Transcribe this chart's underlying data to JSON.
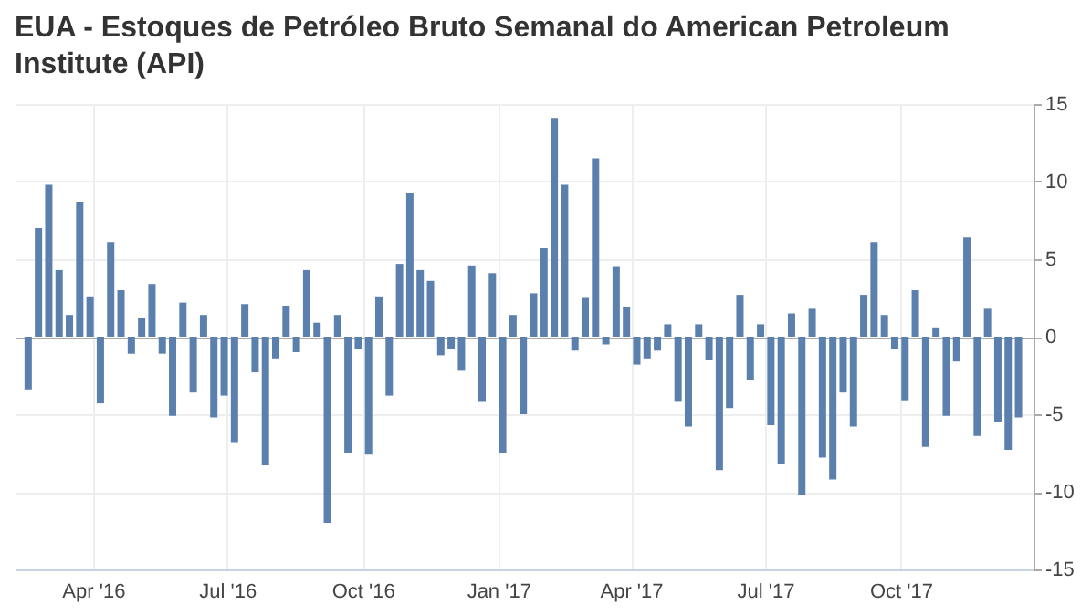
{
  "chart_data": {
    "type": "bar",
    "title": "EUA - Estoques de Petróleo Bruto Semanal do American Petroleum Institute (API)",
    "x": [
      "2016-02-17",
      "2016-02-24",
      "2016-03-02",
      "2016-03-09",
      "2016-03-16",
      "2016-03-23",
      "2016-03-30",
      "2016-04-06",
      "2016-04-13",
      "2016-04-20",
      "2016-04-27",
      "2016-05-04",
      "2016-05-11",
      "2016-05-18",
      "2016-05-25",
      "2016-06-01",
      "2016-06-08",
      "2016-06-15",
      "2016-06-22",
      "2016-06-29",
      "2016-07-06",
      "2016-07-13",
      "2016-07-20",
      "2016-07-27",
      "2016-08-03",
      "2016-08-10",
      "2016-08-17",
      "2016-08-24",
      "2016-08-31",
      "2016-09-07",
      "2016-09-14",
      "2016-09-21",
      "2016-09-28",
      "2016-10-05",
      "2016-10-12",
      "2016-10-19",
      "2016-10-26",
      "2016-11-02",
      "2016-11-09",
      "2016-11-16",
      "2016-11-23",
      "2016-11-30",
      "2016-12-07",
      "2016-12-14",
      "2016-12-21",
      "2016-12-28",
      "2017-01-04",
      "2017-01-11",
      "2017-01-18",
      "2017-01-25",
      "2017-02-01",
      "2017-02-08",
      "2017-02-15",
      "2017-02-22",
      "2017-03-01",
      "2017-03-08",
      "2017-03-15",
      "2017-03-22",
      "2017-03-29",
      "2017-04-05",
      "2017-04-12",
      "2017-04-19",
      "2017-04-26",
      "2017-05-03",
      "2017-05-10",
      "2017-05-17",
      "2017-05-24",
      "2017-05-31",
      "2017-06-07",
      "2017-06-14",
      "2017-06-21",
      "2017-06-28",
      "2017-07-05",
      "2017-07-12",
      "2017-07-19",
      "2017-07-26",
      "2017-08-02",
      "2017-08-09",
      "2017-08-16",
      "2017-08-23",
      "2017-08-30",
      "2017-09-06",
      "2017-09-13",
      "2017-09-20",
      "2017-09-27",
      "2017-10-04",
      "2017-10-11",
      "2017-10-18",
      "2017-10-25",
      "2017-11-01",
      "2017-11-08",
      "2017-11-15",
      "2017-11-22",
      "2017-11-29",
      "2017-12-06",
      "2017-12-13",
      "2017-12-20"
    ],
    "values": [
      -3.4,
      7.0,
      9.8,
      4.3,
      1.4,
      8.7,
      2.6,
      -4.3,
      6.1,
      3.0,
      -1.1,
      1.2,
      3.4,
      -1.1,
      -5.1,
      2.2,
      -3.6,
      1.4,
      -5.2,
      -3.8,
      -6.8,
      2.1,
      -2.3,
      -8.3,
      -1.4,
      2.0,
      -1.0,
      4.3,
      0.9,
      -12.0,
      1.4,
      -7.5,
      -0.8,
      -7.6,
      2.6,
      -3.8,
      4.7,
      9.3,
      4.3,
      3.6,
      -1.2,
      -0.8,
      -2.2,
      4.6,
      -4.2,
      4.1,
      -7.5,
      1.4,
      -5.0,
      2.8,
      5.7,
      14.1,
      9.8,
      -0.9,
      2.5,
      11.5,
      -0.5,
      4.5,
      1.9,
      -1.8,
      -1.4,
      -0.9,
      0.8,
      -4.2,
      -5.8,
      0.8,
      -1.5,
      -8.6,
      -4.6,
      2.7,
      -2.8,
      0.8,
      -5.7,
      -8.2,
      1.5,
      -10.2,
      1.8,
      -7.8,
      -9.2,
      -3.6,
      -5.8,
      2.7,
      6.1,
      1.4,
      -0.8,
      -4.1,
      3.0,
      -7.1,
      0.6,
      -5.1,
      -1.6,
      6.4,
      -6.4,
      1.8,
      -5.5,
      -7.3,
      -5.2
    ],
    "color": "#5b80ad",
    "xlim": [
      "2016-02-14",
      "2017-12-24"
    ],
    "xticks": [
      {
        "value": "2016-04-01",
        "label": "Apr '16"
      },
      {
        "value": "2016-07-01",
        "label": "Jul '16"
      },
      {
        "value": "2016-10-01",
        "label": "Oct '16"
      },
      {
        "value": "2017-01-01",
        "label": "Jan '17"
      },
      {
        "value": "2017-04-01",
        "label": "Apr '17"
      },
      {
        "value": "2017-07-01",
        "label": "Jul '17"
      },
      {
        "value": "2017-10-01",
        "label": "Oct '17"
      }
    ],
    "ylim": [
      -15,
      15
    ],
    "yticks": [
      -15,
      -10,
      -5,
      0,
      5,
      10,
      15
    ],
    "grid": true
  }
}
